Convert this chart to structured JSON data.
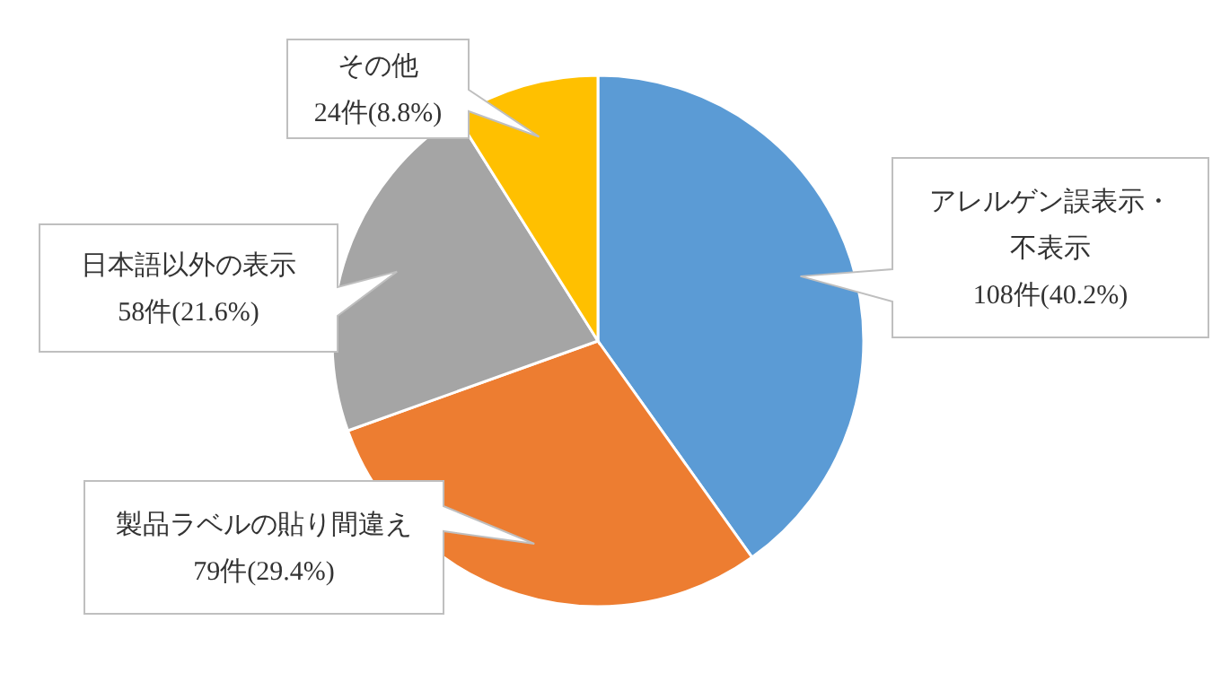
{
  "chart_data": {
    "type": "pie",
    "categories": [
      "アレルゲン誤表示・不表示",
      "製品ラベルの貼り間違え",
      "日本語以外の表示",
      "その他"
    ],
    "values": [
      108,
      79,
      58,
      24
    ],
    "value_labels": [
      "108件(40.2%)",
      "79件(29.4%)",
      "58件(21.6%)",
      "24件(8.8%)"
    ],
    "colors": [
      "#5b9bd5",
      "#ed7d31",
      "#a5a5a5",
      "#ffc000"
    ]
  }
}
